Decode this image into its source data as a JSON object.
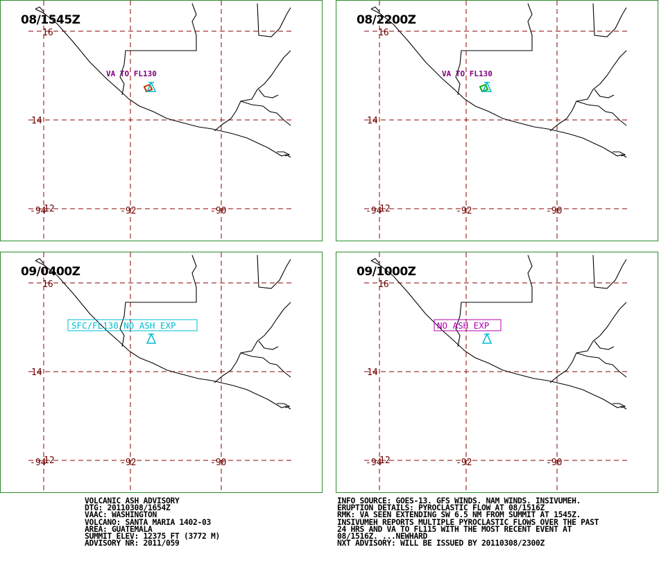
{
  "panels": [
    {
      "time": "08/1545Z",
      "va_label": "VA TO FL130",
      "box_text": "",
      "box_color": "",
      "poly_color": "#c03000"
    },
    {
      "time": "08/2200Z",
      "va_label": "VA TO FL130",
      "box_text": "",
      "box_color": "",
      "poly_color": "#00b000"
    },
    {
      "time": "09/0400Z",
      "va_label": "",
      "box_text": "SFC/FL130 NO ASH EXP",
      "box_color": "#00bcd4",
      "poly_color": ""
    },
    {
      "time": "09/1000Z",
      "va_label": "",
      "box_text": "NO ASH EXP",
      "box_color": "#b000b0",
      "poly_color": ""
    }
  ],
  "grid_labels": {
    "lat16": "16",
    "lat14": "14",
    "lat12": "12",
    "lon94": "-94",
    "lon92": "-92",
    "lon90": "-90"
  },
  "colors": {
    "grid": "#8b0000",
    "coast": "#000000",
    "volcano": "#00bcd4",
    "border": "#2e8b2e"
  },
  "advisory_left": [
    "VOLCANIC ASH ADVISORY",
    "DTG: 20110308/1654Z",
    "VAAC: WASHINGTON",
    "VOLCANO: SANTA MARIA 1402-03",
    "AREA: GUATEMALA",
    "SUMMIT ELEV: 12375 FT (3772 M)",
    "ADVISORY NR: 2011/059"
  ],
  "advisory_right": [
    "INFO SOURCE: GOES-13. GFS WINDS. NAM WINDS. INSIVUMEH.",
    "ERUPTION DETAILS: PYROCLASTIC FLOW AT 08/1516Z",
    "RMK: VA SEEN EXTENDING SW 6.5 NM FROM SUMMIT AT 1545Z.",
    "INSIVUMEH REPORTS MULTIPLE PYROCLASTIC FLOWS OVER THE PAST",
    "24 HRS AND VA TO FL115 WITH THE MOST RECENT EVENT AT",
    "08/1516Z. ...NEWHARD",
    "NXT ADVISORY: WILL BE ISSUED BY 20110308/2300Z"
  ]
}
